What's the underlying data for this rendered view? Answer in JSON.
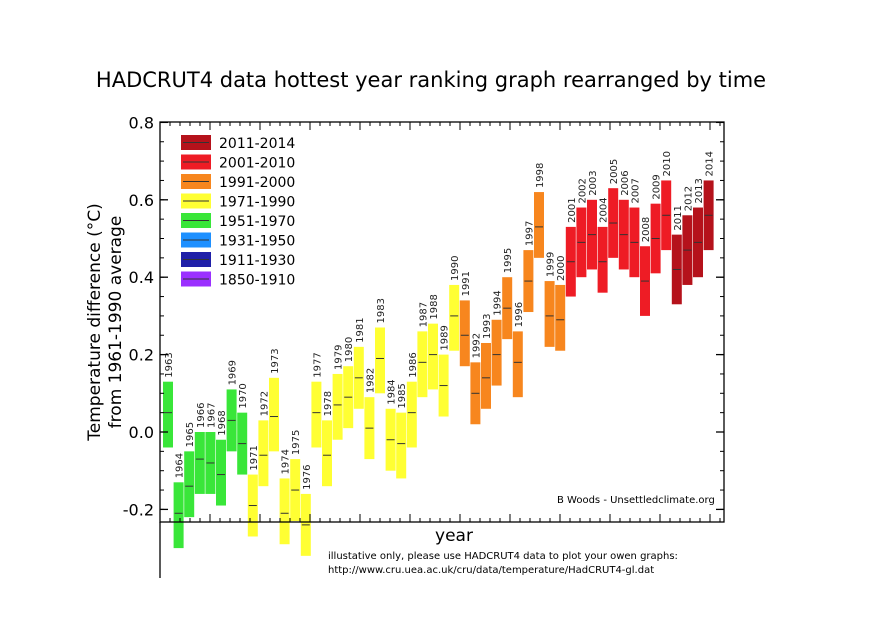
{
  "title": "HADCRUT4 data hottest year ranking graph rearranged by time",
  "credit": "B Woods - Unsettledclimate.org",
  "note_line1": "illustative only, please use HADCRUT4 data to plot your owen graphs:",
  "note_line2": "http://www.cru.uea.ac.uk/cru/data/temperature/HadCRUT4-gl.dat",
  "chart_data": {
    "type": "bar",
    "xlabel": "year",
    "ylabel": "Temperature difference (°C) from 1961-1990 average",
    "ylabel_line1": "Temperature difference (°C)",
    "ylabel_line2": "from 1961-1990 average",
    "ylim": [
      -0.2,
      0.8
    ],
    "yticks": [
      "0.8",
      "0.6",
      "0.4",
      "0.2",
      "0.0",
      "-0.2"
    ],
    "legend_position": "top-left",
    "legend": [
      {
        "label": "2011-2014",
        "color": "#b5121b"
      },
      {
        "label": "2001-2010",
        "color": "#ee1c25"
      },
      {
        "label": "1991-2000",
        "color": "#f7861e"
      },
      {
        "label": "1971-1990",
        "color": "#ffff33"
      },
      {
        "label": "1951-1970",
        "color": "#39e639"
      },
      {
        "label": "1931-1950",
        "color": "#1e90ff"
      },
      {
        "label": "1911-1930",
        "color": "#1f1fa8"
      },
      {
        "label": "1850-1910",
        "color": "#9b30ff"
      }
    ],
    "series": [
      {
        "year": "1963",
        "central": 0.05,
        "low": -0.04,
        "high": 0.13,
        "color": "#39e639"
      },
      {
        "year": "1964",
        "central": -0.21,
        "low": -0.3,
        "high": -0.13,
        "color": "#39e639"
      },
      {
        "year": "1965",
        "central": -0.14,
        "low": -0.22,
        "high": -0.05,
        "color": "#39e639"
      },
      {
        "year": "1966",
        "central": -0.07,
        "low": -0.16,
        "high": 0.0,
        "color": "#39e639"
      },
      {
        "year": "1967",
        "central": -0.08,
        "low": -0.16,
        "high": 0.0,
        "color": "#39e639"
      },
      {
        "year": "1968",
        "central": -0.11,
        "low": -0.19,
        "high": -0.02,
        "color": "#39e639"
      },
      {
        "year": "1969",
        "central": 0.03,
        "low": -0.05,
        "high": 0.11,
        "color": "#39e639"
      },
      {
        "year": "1970",
        "central": -0.03,
        "low": -0.11,
        "high": 0.05,
        "color": "#39e639"
      },
      {
        "year": "1971",
        "central": -0.19,
        "low": -0.27,
        "high": -0.11,
        "color": "#ffff33"
      },
      {
        "year": "1972",
        "central": -0.06,
        "low": -0.14,
        "high": 0.03,
        "color": "#ffff33"
      },
      {
        "year": "1973",
        "central": 0.04,
        "low": -0.05,
        "high": 0.14,
        "color": "#ffff33"
      },
      {
        "year": "1974",
        "central": -0.21,
        "low": -0.29,
        "high": -0.12,
        "color": "#ffff33"
      },
      {
        "year": "1975",
        "central": -0.15,
        "low": -0.23,
        "high": -0.07,
        "color": "#ffff33"
      },
      {
        "year": "1976",
        "central": -0.24,
        "low": -0.32,
        "high": -0.16,
        "color": "#ffff33"
      },
      {
        "year": "1977",
        "central": 0.05,
        "low": -0.04,
        "high": 0.13,
        "color": "#ffff33"
      },
      {
        "year": "1978",
        "central": -0.06,
        "low": -0.14,
        "high": 0.03,
        "color": "#ffff33"
      },
      {
        "year": "1979",
        "central": 0.07,
        "low": -0.02,
        "high": 0.15,
        "color": "#ffff33"
      },
      {
        "year": "1980",
        "central": 0.09,
        "low": 0.01,
        "high": 0.17,
        "color": "#ffff33"
      },
      {
        "year": "1981",
        "central": 0.14,
        "low": 0.06,
        "high": 0.22,
        "color": "#ffff33"
      },
      {
        "year": "1982",
        "central": 0.01,
        "low": -0.07,
        "high": 0.09,
        "color": "#ffff33"
      },
      {
        "year": "1983",
        "central": 0.19,
        "low": 0.1,
        "high": 0.27,
        "color": "#ffff33"
      },
      {
        "year": "1984",
        "central": -0.02,
        "low": -0.1,
        "high": 0.06,
        "color": "#ffff33"
      },
      {
        "year": "1985",
        "central": -0.03,
        "low": -0.12,
        "high": 0.05,
        "color": "#ffff33"
      },
      {
        "year": "1986",
        "central": 0.05,
        "low": -0.04,
        "high": 0.13,
        "color": "#ffff33"
      },
      {
        "year": "1987",
        "central": 0.18,
        "low": 0.09,
        "high": 0.26,
        "color": "#ffff33"
      },
      {
        "year": "1988",
        "central": 0.2,
        "low": 0.11,
        "high": 0.28,
        "color": "#ffff33"
      },
      {
        "year": "1989",
        "central": 0.12,
        "low": 0.04,
        "high": 0.2,
        "color": "#ffff33"
      },
      {
        "year": "1990",
        "central": 0.3,
        "low": 0.21,
        "high": 0.38,
        "color": "#ffff33"
      },
      {
        "year": "1991",
        "central": 0.25,
        "low": 0.17,
        "high": 0.34,
        "color": "#f7861e"
      },
      {
        "year": "1992",
        "central": 0.1,
        "low": 0.02,
        "high": 0.18,
        "color": "#f7861e"
      },
      {
        "year": "1993",
        "central": 0.14,
        "low": 0.06,
        "high": 0.23,
        "color": "#f7861e"
      },
      {
        "year": "1994",
        "central": 0.2,
        "low": 0.12,
        "high": 0.29,
        "color": "#f7861e"
      },
      {
        "year": "1995",
        "central": 0.32,
        "low": 0.24,
        "high": 0.4,
        "color": "#f7861e"
      },
      {
        "year": "1996",
        "central": 0.18,
        "low": 0.09,
        "high": 0.26,
        "color": "#f7861e"
      },
      {
        "year": "1997",
        "central": 0.39,
        "low": 0.31,
        "high": 0.47,
        "color": "#f7861e"
      },
      {
        "year": "1998",
        "central": 0.53,
        "low": 0.45,
        "high": 0.62,
        "color": "#f7861e"
      },
      {
        "year": "1999",
        "central": 0.3,
        "low": 0.22,
        "high": 0.39,
        "color": "#f7861e"
      },
      {
        "year": "2000",
        "central": 0.29,
        "low": 0.21,
        "high": 0.38,
        "color": "#f7861e"
      },
      {
        "year": "2001",
        "central": 0.44,
        "low": 0.35,
        "high": 0.53,
        "color": "#ee1c25"
      },
      {
        "year": "2002",
        "central": 0.49,
        "low": 0.4,
        "high": 0.58,
        "color": "#ee1c25"
      },
      {
        "year": "2003",
        "central": 0.51,
        "low": 0.42,
        "high": 0.6,
        "color": "#ee1c25"
      },
      {
        "year": "2004",
        "central": 0.44,
        "low": 0.36,
        "high": 0.53,
        "color": "#ee1c25"
      },
      {
        "year": "2005",
        "central": 0.54,
        "low": 0.45,
        "high": 0.63,
        "color": "#ee1c25"
      },
      {
        "year": "2006",
        "central": 0.51,
        "low": 0.42,
        "high": 0.6,
        "color": "#ee1c25"
      },
      {
        "year": "2007",
        "central": 0.49,
        "low": 0.4,
        "high": 0.58,
        "color": "#ee1c25"
      },
      {
        "year": "2008",
        "central": 0.39,
        "low": 0.3,
        "high": 0.48,
        "color": "#ee1c25"
      },
      {
        "year": "2009",
        "central": 0.5,
        "low": 0.41,
        "high": 0.59,
        "color": "#ee1c25"
      },
      {
        "year": "2010",
        "central": 0.56,
        "low": 0.47,
        "high": 0.65,
        "color": "#ee1c25"
      },
      {
        "year": "2011",
        "central": 0.42,
        "low": 0.33,
        "high": 0.51,
        "color": "#b5121b"
      },
      {
        "year": "2012",
        "central": 0.47,
        "low": 0.38,
        "high": 0.56,
        "color": "#b5121b"
      },
      {
        "year": "2013",
        "central": 0.49,
        "low": 0.4,
        "high": 0.58,
        "color": "#b5121b"
      },
      {
        "year": "2014",
        "central": 0.56,
        "low": 0.47,
        "high": 0.65,
        "color": "#b5121b"
      }
    ]
  }
}
